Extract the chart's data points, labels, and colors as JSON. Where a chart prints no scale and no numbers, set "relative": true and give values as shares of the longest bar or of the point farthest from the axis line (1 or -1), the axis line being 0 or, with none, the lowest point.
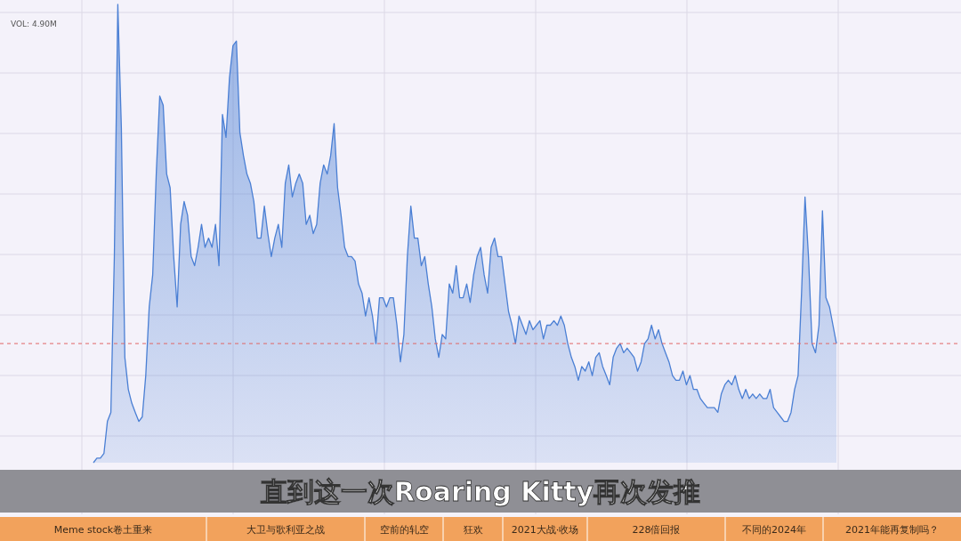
{
  "chart_data": {
    "type": "area",
    "relative": true,
    "grid": true,
    "categories": [
      null,
      null,
      null,
      null,
      null,
      null,
      null,
      null,
      null,
      null,
      null,
      null,
      null,
      null,
      null,
      null,
      null,
      null,
      null,
      null,
      null,
      null,
      null,
      null,
      null,
      null,
      null,
      null,
      null,
      null,
      null,
      null,
      null,
      null,
      null,
      null,
      null,
      null,
      null,
      null,
      null,
      null,
      null,
      null,
      null,
      null,
      null,
      null,
      null,
      null,
      null,
      null,
      null,
      null,
      null,
      null,
      null,
      null,
      null,
      null,
      null,
      null,
      null,
      null,
      null,
      null,
      null,
      null,
      null,
      null,
      null,
      null,
      null,
      null,
      null,
      null,
      null,
      null,
      null,
      null,
      null,
      null,
      null,
      null,
      null,
      null,
      null,
      null,
      null,
      null,
      null,
      null,
      null,
      null,
      null,
      null,
      null,
      null,
      null,
      null,
      null,
      null,
      null,
      null,
      null,
      null,
      null,
      null,
      null,
      null,
      null,
      null,
      null,
      null,
      null,
      null,
      null,
      null,
      null,
      null,
      null,
      null,
      null,
      null,
      null,
      null,
      null,
      null,
      null,
      null,
      null,
      null,
      null,
      null,
      null,
      null,
      null,
      null,
      null,
      null,
      null,
      null,
      null,
      null,
      null,
      null,
      null,
      null,
      null,
      null,
      null,
      null,
      null,
      null,
      null,
      null,
      null,
      null,
      null,
      null,
      null,
      null,
      null,
      null,
      null,
      null,
      null,
      null,
      null,
      null,
      null,
      null,
      null,
      null,
      null,
      null,
      null,
      null,
      null,
      null,
      null,
      null,
      null,
      null,
      null,
      null,
      null,
      null,
      null,
      null,
      null,
      null,
      null,
      null,
      null,
      null,
      null,
      null,
      null,
      null,
      null,
      null,
      null,
      null,
      null,
      null,
      null,
      null,
      null,
      null,
      null,
      null,
      null,
      null
    ],
    "series": [
      {
        "color": "#4a7fd4",
        "values": [
          0.0,
          0.01,
          0.01,
          0.02,
          0.09,
          0.11,
          0.45,
          1.0,
          0.73,
          0.23,
          0.16,
          0.13,
          0.11,
          0.09,
          0.1,
          0.19,
          0.34,
          0.41,
          0.63,
          0.8,
          0.78,
          0.63,
          0.6,
          0.45,
          0.34,
          0.52,
          0.57,
          0.54,
          0.45,
          0.43,
          0.47,
          0.52,
          0.47,
          0.49,
          0.47,
          0.52,
          0.43,
          0.76,
          0.71,
          0.84,
          0.91,
          0.92,
          0.72,
          0.67,
          0.63,
          0.61,
          0.57,
          0.49,
          0.49,
          0.56,
          0.5,
          0.45,
          0.49,
          0.52,
          0.47,
          0.61,
          0.65,
          0.58,
          0.61,
          0.63,
          0.61,
          0.52,
          0.54,
          0.5,
          0.52,
          0.61,
          0.65,
          0.63,
          0.67,
          0.74,
          0.6,
          0.54,
          0.47,
          0.45,
          0.45,
          0.44,
          0.39,
          0.37,
          0.32,
          0.36,
          0.32,
          0.26,
          0.36,
          0.36,
          0.34,
          0.36,
          0.36,
          0.3,
          0.22,
          0.28,
          0.45,
          0.56,
          0.49,
          0.49,
          0.43,
          0.45,
          0.39,
          0.34,
          0.27,
          0.23,
          0.28,
          0.27,
          0.39,
          0.37,
          0.43,
          0.36,
          0.36,
          0.39,
          0.35,
          0.41,
          0.45,
          0.47,
          0.41,
          0.37,
          0.47,
          0.49,
          0.45,
          0.45,
          0.39,
          0.33,
          0.3,
          0.26,
          0.32,
          0.3,
          0.28,
          0.31,
          0.29,
          0.3,
          0.31,
          0.27,
          0.3,
          0.3,
          0.31,
          0.3,
          0.32,
          0.3,
          0.26,
          0.23,
          0.21,
          0.18,
          0.21,
          0.2,
          0.22,
          0.19,
          0.23,
          0.24,
          0.21,
          0.19,
          0.17,
          0.23,
          0.25,
          0.26,
          0.24,
          0.25,
          0.24,
          0.23,
          0.2,
          0.22,
          0.26,
          0.27,
          0.3,
          0.27,
          0.29,
          0.26,
          0.24,
          0.22,
          0.19,
          0.18,
          0.18,
          0.2,
          0.17,
          0.19,
          0.16,
          0.16,
          0.14,
          0.13,
          0.12,
          0.12,
          0.12,
          0.11,
          0.15,
          0.17,
          0.18,
          0.17,
          0.19,
          0.16,
          0.14,
          0.16,
          0.14,
          0.15,
          0.14,
          0.15,
          0.14,
          0.14,
          0.16,
          0.12,
          0.11,
          0.1,
          0.09,
          0.09,
          0.11,
          0.16,
          0.19,
          0.37,
          0.58,
          0.45,
          0.26,
          0.24,
          0.3,
          0.55,
          0.36,
          0.34,
          0.3,
          0.26
        ]
      }
    ],
    "ref_lines": [
      {
        "axis": "y",
        "value": 0.26,
        "color": "#e06666",
        "line_style": "dashed"
      }
    ],
    "annotations": [
      "VOL: 4.90M",
      "直到这一次Roaring  Kitty再次发推",
      "Meme stock卷土重来",
      "大卫与歌利亚之战",
      "空前的轧空",
      "狂欢",
      "2021大战·收场",
      "228倍回报",
      "不同的2024年",
      "2021年能再复制吗？"
    ]
  }
}
